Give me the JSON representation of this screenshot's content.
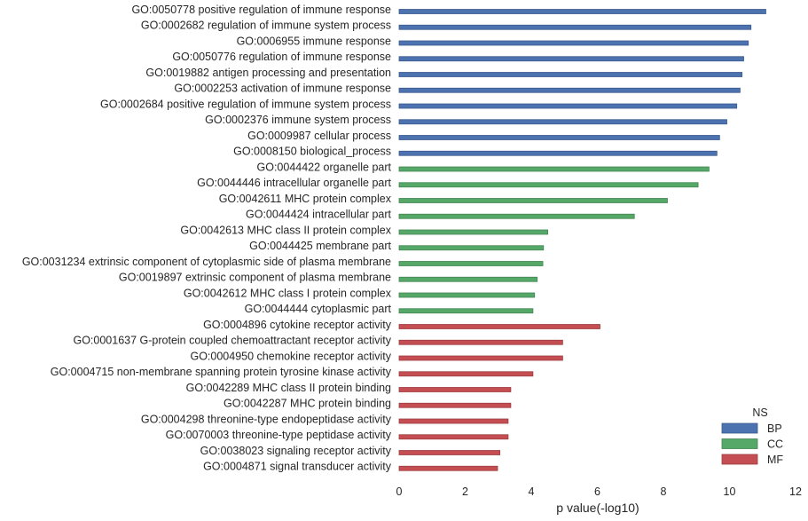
{
  "chart_data": {
    "type": "bar",
    "orientation": "horizontal",
    "xlabel": "p value(-log10)",
    "ylabel": "",
    "xlim": [
      0,
      12
    ],
    "xticks": [
      0,
      2,
      4,
      6,
      8,
      10,
      12
    ],
    "grid": false,
    "legend": {
      "title": "NS",
      "placement": "bottom-right",
      "entries": [
        {
          "name": "BP",
          "color": "#4c72b0"
        },
        {
          "name": "CC",
          "color": "#55a868"
        },
        {
          "name": "MF",
          "color": "#c44e52"
        }
      ]
    },
    "bars": [
      {
        "label": "GO:0050778 positive regulation of immune response",
        "value": 11.1,
        "ns": "BP"
      },
      {
        "label": "GO:0002682 regulation of immune system process",
        "value": 10.65,
        "ns": "BP"
      },
      {
        "label": "GO:0006955 immune response",
        "value": 10.57,
        "ns": "BP"
      },
      {
        "label": "GO:0050776 regulation of immune response",
        "value": 10.43,
        "ns": "BP"
      },
      {
        "label": "GO:0019882 antigen processing and presentation",
        "value": 10.38,
        "ns": "BP"
      },
      {
        "label": "GO:0002253 activation of immune response",
        "value": 10.32,
        "ns": "BP"
      },
      {
        "label": "GO:0002684 positive regulation of immune system process",
        "value": 10.22,
        "ns": "BP"
      },
      {
        "label": "GO:0002376 immune system process",
        "value": 9.92,
        "ns": "BP"
      },
      {
        "label": "GO:0009987 cellular process",
        "value": 9.7,
        "ns": "BP"
      },
      {
        "label": "GO:0008150 biological_process",
        "value": 9.62,
        "ns": "BP"
      },
      {
        "label": "GO:0044422 organelle part",
        "value": 9.38,
        "ns": "CC"
      },
      {
        "label": "GO:0044446 intracellular organelle part",
        "value": 9.05,
        "ns": "CC"
      },
      {
        "label": "GO:0042611 MHC protein complex",
        "value": 8.12,
        "ns": "CC"
      },
      {
        "label": "GO:0044424 intracellular part",
        "value": 7.12,
        "ns": "CC"
      },
      {
        "label": "GO:0042613 MHC class II protein complex",
        "value": 4.5,
        "ns": "CC"
      },
      {
        "label": "GO:0044425 membrane part",
        "value": 4.37,
        "ns": "CC"
      },
      {
        "label": "GO:0031234 extrinsic component of cytoplasmic side of plasma membrane",
        "value": 4.35,
        "ns": "CC"
      },
      {
        "label": "GO:0019897 extrinsic component of plasma membrane",
        "value": 4.18,
        "ns": "CC"
      },
      {
        "label": "GO:0042612 MHC class I protein complex",
        "value": 4.1,
        "ns": "CC"
      },
      {
        "label": "GO:0044444 cytoplasmic part",
        "value": 4.05,
        "ns": "CC"
      },
      {
        "label": "GO:0004896 cytokine receptor activity",
        "value": 6.08,
        "ns": "MF"
      },
      {
        "label": "GO:0001637 G-protein coupled chemoattractant receptor activity",
        "value": 4.95,
        "ns": "MF"
      },
      {
        "label": "GO:0004950 chemokine receptor activity",
        "value": 4.95,
        "ns": "MF"
      },
      {
        "label": "GO:0004715 non-membrane spanning protein tyrosine kinase activity",
        "value": 4.05,
        "ns": "MF"
      },
      {
        "label": "GO:0042289 MHC class II protein binding",
        "value": 3.38,
        "ns": "MF"
      },
      {
        "label": "GO:0042287 MHC protein binding",
        "value": 3.38,
        "ns": "MF"
      },
      {
        "label": "GO:0004298 threonine-type endopeptidase activity",
        "value": 3.3,
        "ns": "MF"
      },
      {
        "label": "GO:0070003 threonine-type peptidase activity",
        "value": 3.3,
        "ns": "MF"
      },
      {
        "label": "GO:0038023 signaling receptor activity",
        "value": 3.05,
        "ns": "MF"
      },
      {
        "label": "GO:0004871 signal transducer activity",
        "value": 2.98,
        "ns": "MF"
      }
    ]
  }
}
